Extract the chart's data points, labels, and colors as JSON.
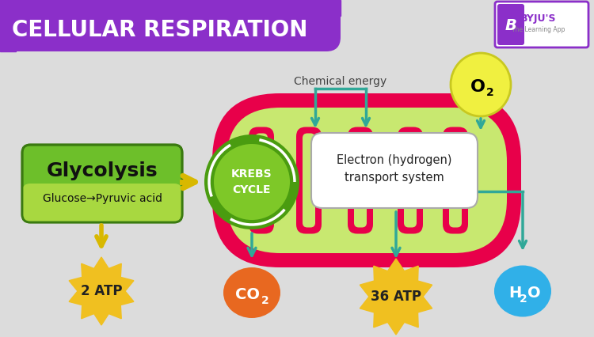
{
  "title": "CELLULAR RESPIRATION",
  "title_bg": "#8B2FC9",
  "title_color": "#FFFFFF",
  "bg_color": "#DCDCDC",
  "glycolysis_label": "Glycolysis",
  "glycolysis_sub": "Glucose→Pyruvic acid",
  "glycolysis_bg_top": "#6DBF2A",
  "glycolysis_bg_bot": "#A8D840",
  "krebs_label_1": "KREBS",
  "krebs_label_2": "CYCLE",
  "krebs_dark": "#4A9C10",
  "krebs_light": "#7EC828",
  "electron_label_1": "Electron (hydrogen)",
  "electron_label_2": "transport system",
  "electron_bg": "#FFFFFF",
  "mito_outer": "#E8004A",
  "mito_inner": "#C8E870",
  "chemical_energy_label": "Chemical energy",
  "o2_label": "O",
  "o2_sub": "2",
  "o2_bg": "#F0F040",
  "atp2_label": "2 ATP",
  "atp2_bg": "#F0C020",
  "co2_label": "CO",
  "co2_sub": "2",
  "co2_bg": "#E86820",
  "atp36_label": "36 ATP",
  "atp36_bg": "#F0C020",
  "h2o_label": "H",
  "h2o_sub2": "2",
  "h2o_labelO": "O",
  "h2o_bg": "#30B0E8",
  "arrow_teal": "#30A898",
  "arrow_yellow": "#D8B800"
}
